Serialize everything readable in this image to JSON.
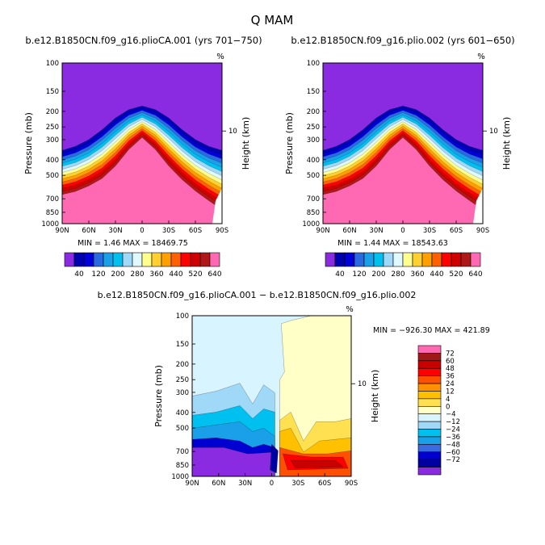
{
  "figure": {
    "title": "Q  MAM",
    "diff_title": "b.e12.B1850CN.f09_g16.plioCA.001 − b.e12.B1850CN.f09_g16.plio.002"
  },
  "colors": {
    "abs_levels": [
      "#8a2be2",
      "#0000b0",
      "#0000d8",
      "#2a6ae0",
      "#1aa0e8",
      "#00c0f0",
      "#a0d8f8",
      "#e0f8ff",
      "#ffff90",
      "#ffd030",
      "#ffa000",
      "#ff6000",
      "#ff0000",
      "#d00000",
      "#b01818",
      "#ff69b4"
    ],
    "diff_levels": [
      "#8a2be2",
      "#0000a0",
      "#0000d0",
      "#3a6ae0",
      "#1aa0e8",
      "#00c0f0",
      "#a0d8f8",
      "#d8f4ff",
      "#ffffc8",
      "#ffe050",
      "#ffc000",
      "#ff9000",
      "#ff5000",
      "#ff0000",
      "#c80000",
      "#a01818",
      "#ff69b4"
    ]
  },
  "chart_data": [
    {
      "type": "heatmap",
      "title": "b.e12.B1850CN.f09_g16.plioCA.001 (yrs 701−750)",
      "units": "%",
      "ylabel": "Pressure (mb)",
      "ylabel_right": "Height (km)",
      "x_ticks": [
        "90N",
        "60N",
        "30N",
        "0",
        "30S",
        "60S",
        "90S"
      ],
      "y_ticks": [
        "100",
        "150",
        "200",
        "250",
        "300",
        "400",
        "500",
        "700",
        "850",
        "1000"
      ],
      "right_ticks": [
        "10"
      ],
      "ylim": [
        1000,
        100
      ],
      "stats": "MIN =     1.46    MAX = 18469.75",
      "colorbar_labels": [
        "40",
        "120",
        "200",
        "280",
        "360",
        "440",
        "520",
        "640"
      ]
    },
    {
      "type": "heatmap",
      "title": "b.e12.B1850CN.f09_g16.plio.002 (yrs 601−650)",
      "units": "%",
      "ylabel": "Pressure (mb)",
      "ylabel_right": "Height (km)",
      "x_ticks": [
        "90N",
        "60N",
        "30N",
        "0",
        "30S",
        "60S",
        "90S"
      ],
      "y_ticks": [
        "100",
        "150",
        "200",
        "250",
        "300",
        "400",
        "500",
        "700",
        "850",
        "1000"
      ],
      "right_ticks": [
        "10"
      ],
      "ylim": [
        1000,
        100
      ],
      "stats": "MIN =     1.44    MAX = 18543.63",
      "colorbar_labels": [
        "40",
        "120",
        "200",
        "280",
        "360",
        "440",
        "520",
        "640"
      ]
    },
    {
      "type": "heatmap",
      "title": "b.e12.B1850CN.f09_g16.plioCA.001 − b.e12.B1850CN.f09_g16.plio.002",
      "units": "%",
      "ylabel": "Pressure (mb)",
      "ylabel_right": "Height (km)",
      "x_ticks": [
        "90N",
        "60N",
        "30N",
        "0",
        "30S",
        "60S",
        "90S"
      ],
      "y_ticks": [
        "100",
        "150",
        "200",
        "250",
        "300",
        "400",
        "500",
        "700",
        "850",
        "1000"
      ],
      "right_ticks": [
        "10"
      ],
      "ylim": [
        1000,
        100
      ],
      "stats": "MIN = −926.30    MAX = 421.89",
      "colorbar_labels": [
        "72",
        "60",
        "48",
        "36",
        "24",
        "12",
        "4",
        "0",
        "−4",
        "−12",
        "−24",
        "−36",
        "−48",
        "−60",
        "−72"
      ]
    }
  ]
}
